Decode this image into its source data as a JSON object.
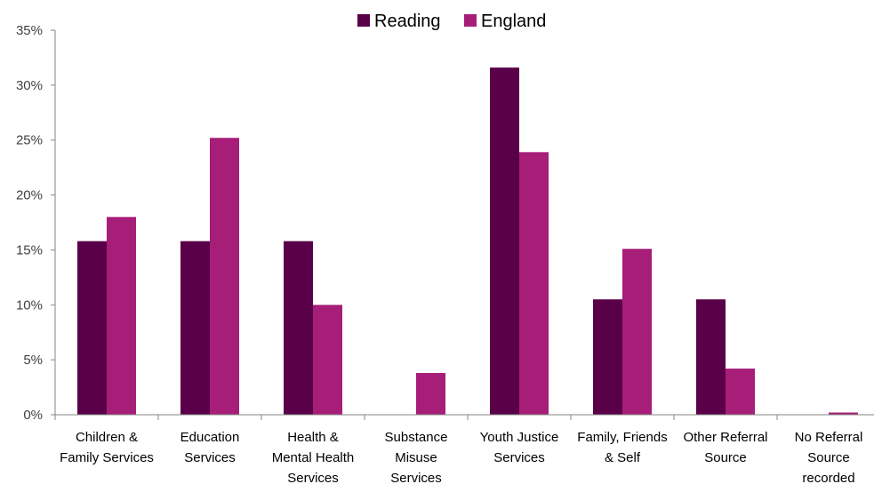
{
  "chart_data": {
    "type": "bar",
    "title": "",
    "xlabel": "",
    "ylabel": "",
    "ylim": [
      0,
      35
    ],
    "yticks": [
      0,
      5,
      10,
      15,
      20,
      25,
      30,
      35
    ],
    "ytick_labels": [
      "0%",
      "5%",
      "10%",
      "15%",
      "20%",
      "25%",
      "30%",
      "35%"
    ],
    "grid": false,
    "legend_position": "top",
    "categories": [
      [
        "Children &",
        "Family Services"
      ],
      [
        "Education",
        "Services"
      ],
      [
        "Health &",
        "Mental Health",
        "Services"
      ],
      [
        "Substance",
        "Misuse",
        "Services"
      ],
      [
        "Youth Justice",
        "Services"
      ],
      [
        "Family, Friends",
        "& Self"
      ],
      [
        "Other Referral",
        "Source"
      ],
      [
        "No Referral",
        "Source",
        "recorded"
      ]
    ],
    "series": [
      {
        "name": "Reading",
        "color": "#5a0048",
        "values": [
          15.8,
          15.8,
          15.8,
          0,
          31.6,
          10.5,
          10.5,
          0
        ]
      },
      {
        "name": "England",
        "color": "#a61e78",
        "values": [
          18.0,
          25.2,
          10.0,
          3.8,
          23.9,
          15.1,
          4.2,
          0.2
        ]
      }
    ]
  }
}
